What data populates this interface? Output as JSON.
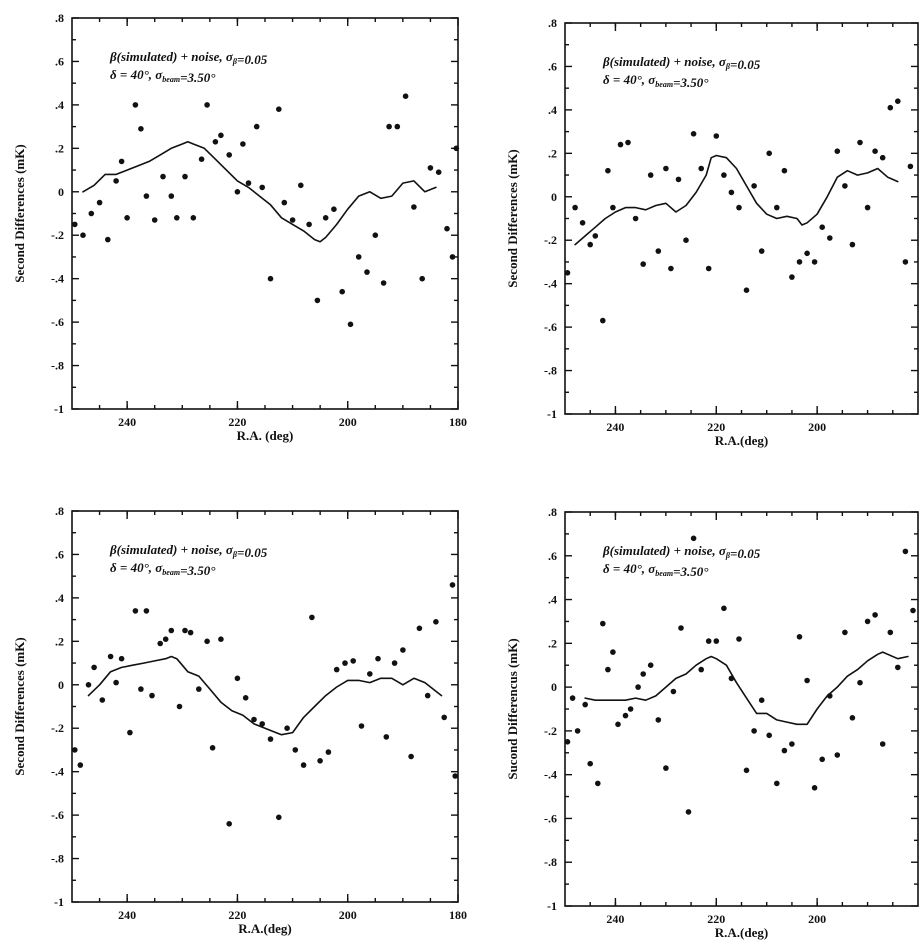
{
  "chart_data": [
    {
      "type": "scatter",
      "panel": "top-left",
      "xlabel": "R.A. (deg)",
      "ylabel": "Second Differences (mK)",
      "annotation_line1": "β(simulated) + noise, σβ=0.05",
      "annotation_line2": "δ = 40°, σbeam=3.50°",
      "xlim": [
        250,
        180
      ],
      "ylim": [
        -1,
        0.8
      ],
      "xticks": [
        240,
        220,
        200,
        180
      ],
      "xtick_labels": [
        "240",
        "220",
        "200",
        "180"
      ],
      "yticks": [
        0.8,
        0.6,
        0.4,
        0.2,
        0,
        -0.2,
        -0.4,
        -0.6,
        -0.8,
        -1
      ],
      "ytick_labels": [
        ".8",
        ".6",
        ".4",
        ".2",
        "0",
        "-.2",
        "-.4",
        "-.6",
        "-.8",
        "-1"
      ],
      "series": [
        {
          "kind": "points",
          "x": [
            249.5,
            248,
            246.5,
            245,
            243.5,
            242,
            241,
            240,
            238.5,
            237.5,
            236.5,
            235,
            233.5,
            232,
            231,
            229.5,
            228,
            226.5,
            225.5,
            224,
            223,
            221.5,
            220,
            219,
            218,
            216.5,
            215.5,
            214,
            212.5,
            211.5,
            210,
            208.5,
            207,
            205.5,
            204,
            202.5,
            201,
            199.5,
            198,
            196.5,
            195,
            193.5,
            192.5,
            191,
            189.5,
            188,
            186.5,
            185,
            183.5,
            182,
            181,
            180.3
          ],
          "y": [
            -0.15,
            -0.2,
            -0.1,
            -0.05,
            -0.22,
            0.05,
            0.14,
            -0.12,
            0.4,
            0.29,
            -0.02,
            -0.13,
            0.07,
            -0.02,
            -0.12,
            0.07,
            -0.12,
            0.15,
            0.4,
            0.23,
            0.26,
            0.17,
            0.0,
            0.22,
            0.04,
            0.3,
            0.02,
            -0.4,
            0.38,
            -0.05,
            -0.13,
            0.03,
            -0.15,
            -0.5,
            -0.12,
            -0.08,
            -0.46,
            -0.61,
            -0.3,
            -0.37,
            -0.2,
            -0.42,
            0.3,
            0.3,
            0.44,
            -0.07,
            -0.4,
            0.11,
            0.09,
            -0.17,
            -0.3,
            0.2
          ]
        },
        {
          "kind": "line",
          "x": [
            248,
            246,
            244,
            242,
            240,
            238,
            236,
            234,
            232,
            230,
            229,
            228,
            226,
            224,
            222,
            220,
            218,
            216,
            214,
            212,
            210,
            208,
            206,
            205,
            204,
            202,
            200,
            198,
            196,
            194,
            192,
            190,
            188,
            186,
            184
          ],
          "y": [
            0.0,
            0.03,
            0.08,
            0.08,
            0.1,
            0.12,
            0.14,
            0.17,
            0.2,
            0.22,
            0.23,
            0.22,
            0.2,
            0.15,
            0.1,
            0.05,
            0.02,
            -0.02,
            -0.06,
            -0.12,
            -0.15,
            -0.18,
            -0.22,
            -0.23,
            -0.21,
            -0.15,
            -0.08,
            -0.02,
            0.0,
            -0.03,
            -0.02,
            0.04,
            0.05,
            0.0,
            0.02
          ]
        }
      ]
    },
    {
      "type": "scatter",
      "panel": "top-right",
      "xlabel": "R.A.(deg)",
      "ylabel": "Second Differences (mK)",
      "annotation_line1": "β(simulated) + noise, σβ=0.05",
      "annotation_line2": "δ = 40°, σbeam=3.50°",
      "xlim": [
        250,
        180
      ],
      "ylim": [
        -1,
        0.8
      ],
      "xticks": [
        240,
        220,
        200
      ],
      "xtick_labels": [
        "240",
        "220",
        "200"
      ],
      "yticks": [
        0.8,
        0.6,
        0.4,
        0.2,
        0,
        -0.2,
        -0.4,
        -0.6,
        -0.8,
        -1
      ],
      "ytick_labels": [
        ".8",
        ".6",
        ".4",
        ".2",
        "0",
        "-.2",
        "-.4",
        "-.6",
        "-.8",
        "-1"
      ],
      "series": [
        {
          "kind": "points",
          "x": [
            249.5,
            248,
            246.5,
            245,
            244,
            242.5,
            241.5,
            240.5,
            239,
            237.5,
            236,
            234.5,
            233,
            231.5,
            230,
            229,
            227.5,
            226,
            224.5,
            223,
            221.5,
            220,
            218.5,
            217,
            215.5,
            214,
            212.5,
            211,
            209.5,
            208,
            206.5,
            205,
            203.5,
            202,
            200.5,
            199,
            197.5,
            196,
            194.5,
            193,
            191.5,
            190,
            188.5,
            187,
            185.5,
            184,
            182.5,
            181.5
          ],
          "y": [
            -0.35,
            -0.05,
            -0.12,
            -0.22,
            -0.18,
            -0.57,
            0.12,
            -0.05,
            0.24,
            0.25,
            -0.1,
            -0.31,
            0.1,
            -0.25,
            0.13,
            -0.33,
            0.08,
            -0.2,
            0.29,
            0.13,
            -0.33,
            0.28,
            0.1,
            0.02,
            -0.05,
            -0.43,
            0.05,
            -0.25,
            0.2,
            -0.05,
            0.12,
            -0.37,
            -0.3,
            -0.26,
            -0.3,
            -0.14,
            -0.19,
            0.21,
            0.05,
            -0.22,
            0.25,
            -0.05,
            0.21,
            0.18,
            0.41,
            0.44,
            -0.3,
            0.14
          ]
        },
        {
          "kind": "line",
          "x": [
            248,
            246,
            244,
            242,
            240,
            238,
            236,
            234,
            232,
            230,
            228,
            226,
            224,
            222,
            221,
            220,
            218,
            216,
            214,
            212,
            210,
            208,
            206,
            204,
            203,
            202,
            200,
            198,
            196,
            194,
            192,
            190,
            188,
            186,
            184
          ],
          "y": [
            -0.22,
            -0.18,
            -0.14,
            -0.1,
            -0.07,
            -0.05,
            -0.05,
            -0.06,
            -0.04,
            -0.03,
            -0.07,
            -0.04,
            0.02,
            0.1,
            0.18,
            0.19,
            0.18,
            0.13,
            0.05,
            -0.03,
            -0.08,
            -0.1,
            -0.09,
            -0.1,
            -0.13,
            -0.12,
            -0.08,
            0.0,
            0.09,
            0.12,
            0.1,
            0.11,
            0.13,
            0.09,
            0.07
          ]
        }
      ]
    },
    {
      "type": "scatter",
      "panel": "bottom-left",
      "xlabel": "R.A.(deg)",
      "ylabel": "Second Differences (mK)",
      "annotation_line1": "β(simulated) + noise, σβ=0.05",
      "annotation_line2": "δ = 40°, σbeam=3.50°",
      "xlim": [
        250,
        180
      ],
      "ylim": [
        -1,
        0.8
      ],
      "xticks": [
        240,
        220,
        200,
        180
      ],
      "xtick_labels": [
        "240",
        "220",
        "200",
        "180"
      ],
      "yticks": [
        0.8,
        0.6,
        0.4,
        0.2,
        0,
        -0.2,
        -0.4,
        -0.6,
        -0.8,
        -1
      ],
      "ytick_labels": [
        ".8",
        ".6",
        ".4",
        ".2",
        "0",
        "-.2",
        "-.4",
        "-.6",
        "-.8",
        "-1"
      ],
      "series": [
        {
          "kind": "points",
          "x": [
            249.5,
            248.5,
            247,
            246,
            244.5,
            243,
            242,
            241,
            239.5,
            238.5,
            237.5,
            236.5,
            235.5,
            234,
            233,
            232,
            230.5,
            229.5,
            228.5,
            227,
            225.5,
            224.5,
            223,
            221.5,
            220,
            218.5,
            217,
            215.5,
            214,
            212.5,
            211,
            209.5,
            208,
            206.5,
            205,
            203.5,
            202,
            200.5,
            199,
            197.5,
            196,
            194.5,
            193,
            191.5,
            190,
            188.5,
            187,
            185.5,
            184,
            182.5,
            181,
            180.5
          ],
          "y": [
            -0.3,
            -0.37,
            0.0,
            0.08,
            -0.07,
            0.13,
            0.01,
            0.12,
            -0.22,
            0.34,
            -0.02,
            0.34,
            -0.05,
            0.19,
            0.21,
            0.25,
            -0.1,
            0.25,
            0.24,
            -0.02,
            0.2,
            -0.29,
            0.21,
            -0.64,
            0.03,
            -0.06,
            -0.16,
            -0.18,
            -0.25,
            -0.61,
            -0.2,
            -0.3,
            -0.37,
            0.31,
            -0.35,
            -0.31,
            0.07,
            0.1,
            0.11,
            -0.19,
            0.05,
            0.12,
            -0.24,
            0.1,
            0.16,
            -0.33,
            0.26,
            -0.05,
            0.29,
            -0.15,
            0.46,
            -0.42
          ]
        },
        {
          "kind": "line",
          "x": [
            247,
            245,
            243,
            241,
            239,
            237,
            235,
            233,
            232,
            231,
            229,
            227,
            225,
            223,
            221,
            219,
            217,
            215,
            213,
            212,
            210,
            208,
            206,
            204,
            202,
            200,
            198,
            196,
            194,
            192,
            190,
            188,
            186,
            184,
            183
          ],
          "y": [
            -0.05,
            0.0,
            0.06,
            0.08,
            0.09,
            0.1,
            0.11,
            0.12,
            0.13,
            0.12,
            0.06,
            0.04,
            -0.02,
            -0.08,
            -0.12,
            -0.14,
            -0.18,
            -0.2,
            -0.22,
            -0.23,
            -0.22,
            -0.15,
            -0.1,
            -0.05,
            -0.01,
            0.02,
            0.02,
            0.01,
            0.03,
            0.03,
            0.0,
            0.03,
            0.01,
            -0.03,
            -0.05
          ]
        }
      ]
    },
    {
      "type": "scatter",
      "panel": "bottom-right",
      "xlabel": "R.A.(deg)",
      "ylabel": "Sucond Differencus (mK)",
      "annotation_line1": "β(simulated) + noise, σβ=0.05",
      "annotation_line2": "δ = 40°, σbeam=3.50°",
      "xlim": [
        250,
        180
      ],
      "ylim": [
        -1,
        0.8
      ],
      "xticks": [
        240,
        220,
        200
      ],
      "xtick_labels": [
        "240",
        "220",
        "200"
      ],
      "yticks": [
        0.8,
        0.6,
        0.4,
        0.2,
        0,
        -0.2,
        -0.4,
        -0.6,
        -0.8,
        -1
      ],
      "ytick_labels": [
        ".8",
        ".6",
        ".4",
        ".2",
        "0",
        "-.2",
        "-.4",
        "-.6",
        "-.8",
        "-1"
      ],
      "series": [
        {
          "kind": "points",
          "x": [
            249.5,
            248.5,
            247.5,
            246,
            245,
            243.5,
            242.5,
            241.5,
            240.5,
            239.5,
            238,
            237,
            235.5,
            234.5,
            233,
            231.5,
            230,
            228.5,
            227,
            225.5,
            224.5,
            223,
            221.5,
            220,
            218.5,
            217,
            215.5,
            214,
            212.5,
            211,
            209.5,
            208,
            206.5,
            205,
            203.5,
            202,
            200.5,
            199,
            197.5,
            196,
            194.5,
            193,
            191.5,
            190,
            188.5,
            187,
            185.5,
            184,
            182.5,
            181
          ],
          "y": [
            -0.25,
            -0.05,
            -0.2,
            -0.08,
            -0.35,
            -0.44,
            0.29,
            0.08,
            0.16,
            -0.17,
            -0.13,
            -0.1,
            0.0,
            0.06,
            0.1,
            -0.15,
            -0.37,
            -0.02,
            0.27,
            -0.57,
            0.68,
            0.08,
            0.21,
            0.21,
            0.36,
            0.04,
            0.22,
            -0.38,
            -0.2,
            -0.06,
            -0.22,
            -0.44,
            -0.29,
            -0.26,
            0.23,
            0.03,
            -0.46,
            -0.33,
            -0.04,
            -0.31,
            0.25,
            -0.14,
            0.02,
            0.3,
            0.33,
            -0.26,
            0.25,
            0.09,
            0.62,
            0.35
          ]
        },
        {
          "kind": "line",
          "x": [
            246,
            244,
            242,
            240,
            238,
            236,
            234,
            232,
            230,
            228,
            226,
            224,
            222,
            221,
            220,
            218,
            216,
            214,
            212,
            210,
            208,
            206,
            204,
            202,
            200,
            198,
            196,
            194,
            192,
            190,
            188,
            187,
            186,
            184,
            182
          ],
          "y": [
            -0.05,
            -0.06,
            -0.06,
            -0.06,
            -0.06,
            -0.05,
            -0.06,
            -0.04,
            0.0,
            0.04,
            0.06,
            0.1,
            0.13,
            0.14,
            0.13,
            0.1,
            0.02,
            -0.05,
            -0.12,
            -0.12,
            -0.15,
            -0.16,
            -0.17,
            -0.17,
            -0.1,
            -0.04,
            0.0,
            0.05,
            0.08,
            0.12,
            0.15,
            0.16,
            0.15,
            0.13,
            0.14
          ]
        }
      ]
    }
  ]
}
